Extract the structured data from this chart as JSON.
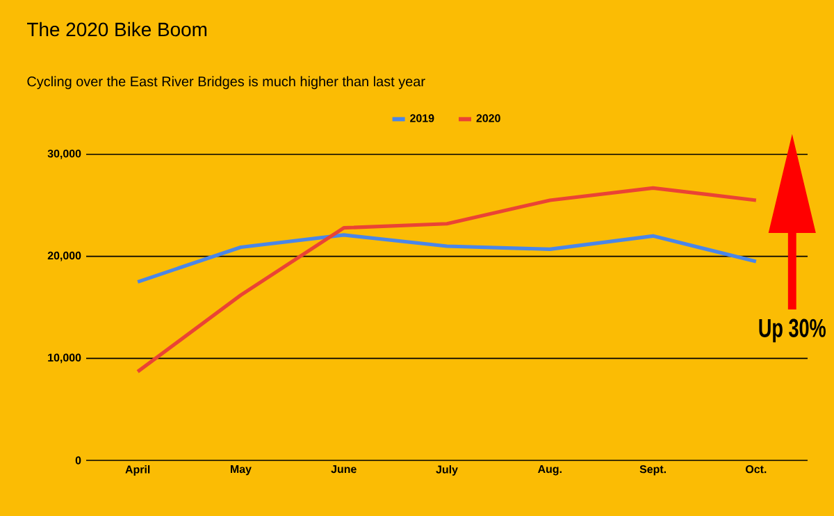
{
  "chart_data": {
    "type": "line",
    "title": "The 2020 Bike Boom",
    "subtitle": "Cycling over the East River Bridges is much higher than last year",
    "categories": [
      "April",
      "May",
      "June",
      "July",
      "Aug.",
      "Sept.",
      "Oct."
    ],
    "series": [
      {
        "name": "2019",
        "color": "#4a86e8",
        "values": [
          17500,
          20900,
          22100,
          21000,
          20700,
          22000,
          19500
        ]
      },
      {
        "name": "2020",
        "color": "#ea4335",
        "values": [
          8700,
          16200,
          22800,
          23200,
          25500,
          26700,
          25500
        ]
      }
    ],
    "ylim": [
      0,
      30000
    ],
    "yticks": [
      {
        "value": 0,
        "label": "0"
      },
      {
        "value": 10000,
        "label": "10,000"
      },
      {
        "value": 20000,
        "label": "20,000"
      },
      {
        "value": 30000,
        "label": "30,000"
      }
    ],
    "grid": "y",
    "legend": "top",
    "marker": "none",
    "line_style": "solid",
    "annotations": [
      "Up 30%"
    ]
  }
}
